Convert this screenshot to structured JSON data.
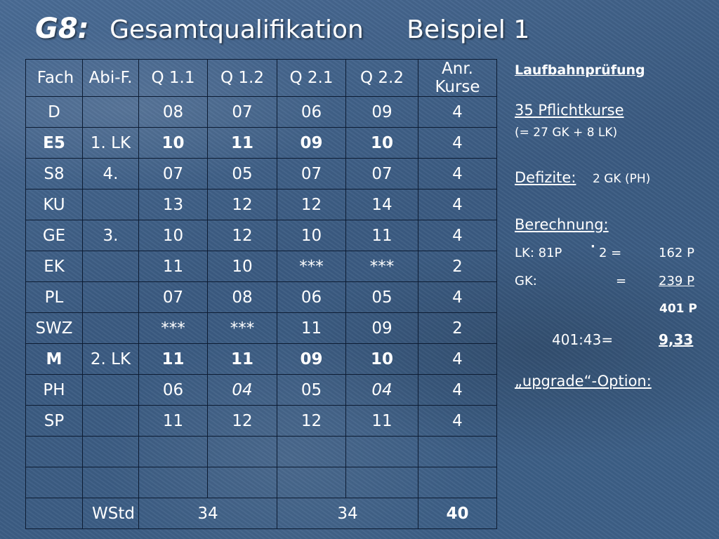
{
  "title": {
    "prefix": "G8:",
    "main": "Gesamtqualifikation",
    "example": "Beispiel 1"
  },
  "table": {
    "headers": [
      "Fach",
      "Abi-F.",
      "Q 1.1",
      "Q 1.2",
      "Q 2.1",
      "Q 2.2",
      "Anr. Kurse"
    ],
    "rows": [
      [
        "D",
        "",
        "08",
        "07",
        "06",
        "09",
        "4"
      ],
      [
        "E5",
        "1. LK",
        "10",
        "11",
        "09",
        "10",
        "4"
      ],
      [
        "S8",
        "4.",
        "07",
        "05",
        "07",
        "07",
        "4"
      ],
      [
        "KU",
        "",
        "13",
        "12",
        "12",
        "14",
        "4"
      ],
      [
        "GE",
        "3.",
        "10",
        "12",
        "10",
        "11",
        "4"
      ],
      [
        "EK",
        "",
        "11",
        "10",
        "***",
        "***",
        "2"
      ],
      [
        "PL",
        "",
        "07",
        "08",
        "06",
        "05",
        "4"
      ],
      [
        "SWZ",
        "",
        "***",
        "***",
        "11",
        "09",
        "2"
      ],
      [
        "M",
        "2. LK",
        "11",
        "11",
        "09",
        "10",
        "4"
      ],
      [
        "PH",
        "",
        "06",
        "04",
        "05",
        "04",
        "4"
      ],
      [
        "SP",
        "",
        "11",
        "12",
        "12",
        "11",
        "4"
      ],
      [
        "",
        "",
        "",
        "",
        "",
        "",
        ""
      ],
      [
        "",
        "",
        "",
        "",
        "",
        "",
        ""
      ]
    ],
    "footer": {
      "label": "WStd",
      "q1_sum": "34",
      "q2_sum": "34",
      "total": "40"
    }
  },
  "side": {
    "heading": "Laufbahnprüfung",
    "pflicht": "35 Pflichtkurse",
    "pflicht_detail": "(= 27 GK + 8 LK)",
    "defizite_label": "Defizite:",
    "defizite_value": "2 GK (PH)",
    "berechnung_label": "Berechnung:",
    "lk_label": "LK:  81P",
    "lk_dot": "·",
    "lk_mult": "2 =",
    "lk_value": "162 P",
    "gk_label": "GK:",
    "gk_eq": "=",
    "gk_value": "239 P",
    "sum_value": "401 P",
    "div_label": "401:43=",
    "div_value": "9,33",
    "upgrade": "„upgrade“-Option:"
  },
  "colors": {
    "red": "#d4201a",
    "blue": "#2f7fe8",
    "green": "#18b646",
    "background": "#3f5f86"
  }
}
